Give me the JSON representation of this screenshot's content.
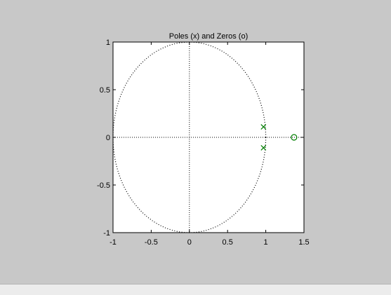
{
  "chart_data": {
    "type": "scatter",
    "title": "Poles (x) and Zeros (o)",
    "xlabel": "",
    "ylabel": "",
    "xlim": [
      -1,
      1.5
    ],
    "ylim": [
      -1,
      1
    ],
    "x_ticks": [
      "-1",
      "-0.5",
      "0",
      "0.5",
      "1",
      "1.5"
    ],
    "y_ticks": [
      "1",
      "0.5",
      "0",
      "-0.5",
      "-1"
    ],
    "grid": false,
    "unit_circle": true,
    "reference_axes": true,
    "series": [
      {
        "marker": "x",
        "color": "#007f00",
        "points": [
          [
            0.97,
            0.11
          ],
          [
            0.97,
            -0.11
          ]
        ]
      },
      {
        "marker": "o",
        "color": "#007f00",
        "points": [
          [
            1.37,
            0.0
          ]
        ]
      }
    ]
  },
  "colors": {
    "figure_background": "#c8c8c8",
    "axes_background": "#ffffff",
    "marker": "#007f00"
  }
}
